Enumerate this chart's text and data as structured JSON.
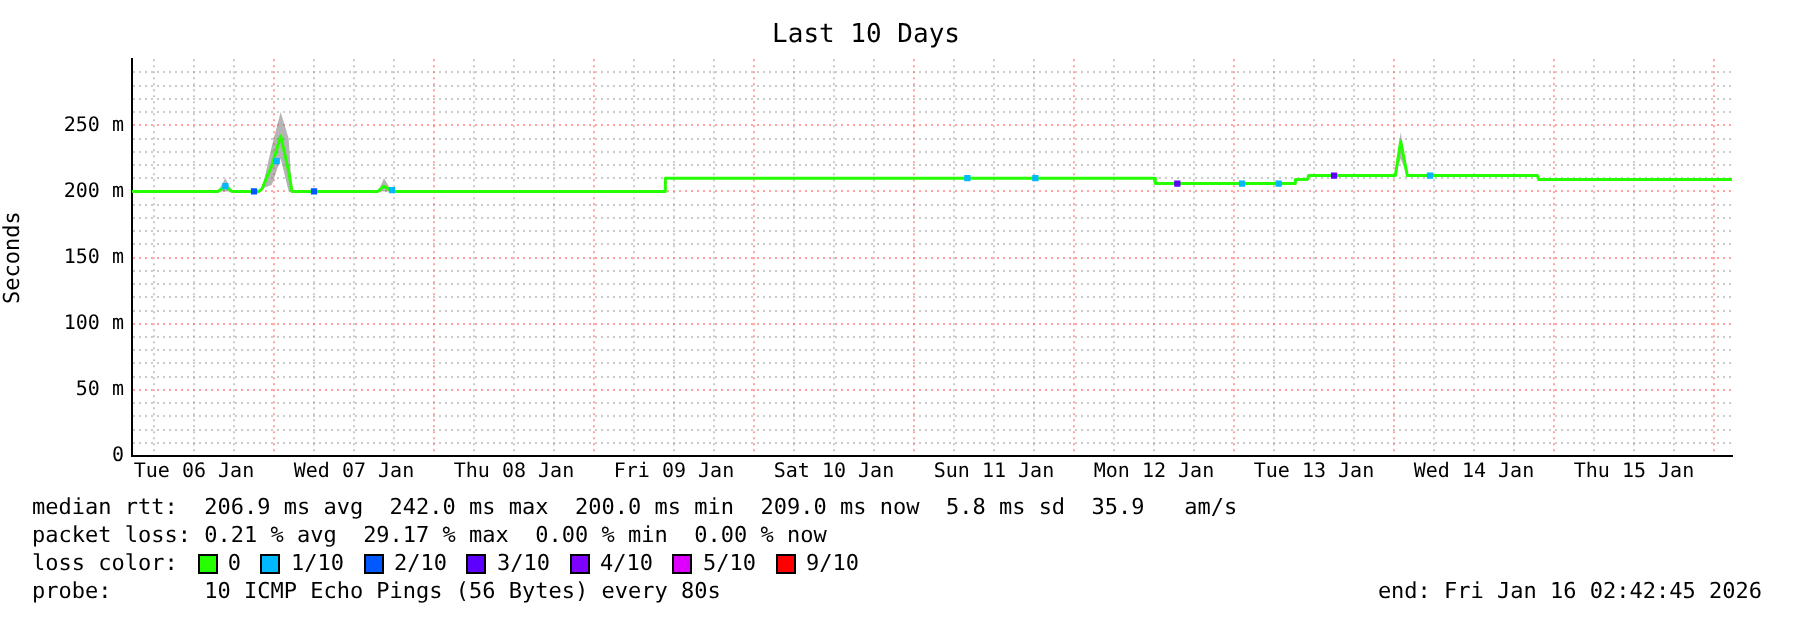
{
  "chart_data": {
    "type": "line",
    "title": "Last 10 Days",
    "ylabel": "Seconds",
    "legend_title": "loss color:",
    "legend": "bottom",
    "grid": true,
    "marker": "none",
    "xlim": [
      "2026-01-06T02:42",
      "2026-01-16T02:42"
    ],
    "xticks": [
      {
        "value": "2026-01-06T06:00",
        "label": null
      },
      {
        "value": "2026-01-06T12:00",
        "label": "Tue 06 Jan"
      },
      {
        "value": "2026-01-06T18:00",
        "label": null
      },
      {
        "value": "2026-01-07T00:00",
        "label": null
      },
      {
        "value": "2026-01-07T06:00",
        "label": null
      },
      {
        "value": "2026-01-07T12:00",
        "label": "Wed 07 Jan"
      },
      {
        "value": "2026-01-07T18:00",
        "label": null
      },
      {
        "value": "2026-01-08T00:00",
        "label": null
      },
      {
        "value": "2026-01-08T06:00",
        "label": null
      },
      {
        "value": "2026-01-08T12:00",
        "label": "Thu 08 Jan"
      },
      {
        "value": "2026-01-08T18:00",
        "label": null
      },
      {
        "value": "2026-01-09T00:00",
        "label": null
      },
      {
        "value": "2026-01-09T06:00",
        "label": null
      },
      {
        "value": "2026-01-09T12:00",
        "label": "Fri 09 Jan"
      },
      {
        "value": "2026-01-09T18:00",
        "label": null
      },
      {
        "value": "2026-01-10T00:00",
        "label": null
      },
      {
        "value": "2026-01-10T06:00",
        "label": null
      },
      {
        "value": "2026-01-10T12:00",
        "label": "Sat 10 Jan"
      },
      {
        "value": "2026-01-10T18:00",
        "label": null
      },
      {
        "value": "2026-01-11T00:00",
        "label": null
      },
      {
        "value": "2026-01-11T06:00",
        "label": null
      },
      {
        "value": "2026-01-11T12:00",
        "label": "Sun 11 Jan"
      },
      {
        "value": "2026-01-11T18:00",
        "label": null
      },
      {
        "value": "2026-01-12T00:00",
        "label": null
      },
      {
        "value": "2026-01-12T06:00",
        "label": null
      },
      {
        "value": "2026-01-12T12:00",
        "label": "Mon 12 Jan"
      },
      {
        "value": "2026-01-12T18:00",
        "label": null
      },
      {
        "value": "2026-01-13T00:00",
        "label": null
      },
      {
        "value": "2026-01-13T06:00",
        "label": null
      },
      {
        "value": "2026-01-13T12:00",
        "label": "Tue 13 Jan"
      },
      {
        "value": "2026-01-13T18:00",
        "label": null
      },
      {
        "value": "2026-01-14T00:00",
        "label": null
      },
      {
        "value": "2026-01-14T06:00",
        "label": null
      },
      {
        "value": "2026-01-14T12:00",
        "label": "Wed 14 Jan"
      },
      {
        "value": "2026-01-14T18:00",
        "label": null
      },
      {
        "value": "2026-01-15T00:00",
        "label": null
      },
      {
        "value": "2026-01-15T06:00",
        "label": null
      },
      {
        "value": "2026-01-15T12:00",
        "label": "Thu 15 Jan"
      },
      {
        "value": "2026-01-15T18:00",
        "label": null
      },
      {
        "value": "2026-01-16T00:00",
        "label": null
      }
    ],
    "ylim": [
      0,
      300
    ],
    "yticks": [
      {
        "value": 0,
        "label": "0"
      },
      {
        "value": 10,
        "label": null
      },
      {
        "value": 20,
        "label": null
      },
      {
        "value": 30,
        "label": null
      },
      {
        "value": 40,
        "label": null
      },
      {
        "value": 50,
        "label": "50 m"
      },
      {
        "value": 60,
        "label": null
      },
      {
        "value": 70,
        "label": null
      },
      {
        "value": 80,
        "label": null
      },
      {
        "value": 90,
        "label": null
      },
      {
        "value": 100,
        "label": "100 m"
      },
      {
        "value": 110,
        "label": null
      },
      {
        "value": 120,
        "label": null
      },
      {
        "value": 130,
        "label": null
      },
      {
        "value": 140,
        "label": null
      },
      {
        "value": 150,
        "label": "150 m"
      },
      {
        "value": 160,
        "label": null
      },
      {
        "value": 170,
        "label": null
      },
      {
        "value": 180,
        "label": null
      },
      {
        "value": 190,
        "label": null
      },
      {
        "value": 200,
        "label": "200 m"
      },
      {
        "value": 210,
        "label": null
      },
      {
        "value": 220,
        "label": null
      },
      {
        "value": 230,
        "label": null
      },
      {
        "value": 240,
        "label": null
      },
      {
        "value": 250,
        "label": "250 m"
      },
      {
        "value": 260,
        "label": null
      },
      {
        "value": 270,
        "label": null
      },
      {
        "value": 280,
        "label": null
      },
      {
        "value": 290,
        "label": null
      }
    ],
    "series": [
      {
        "name": "0",
        "color": "#26ff00",
        "x": [
          "2026-01-06T02:42",
          "2026-01-06T15:36",
          "2026-01-06T16:42",
          "2026-01-06T17:42",
          "2026-01-06T21:42",
          "2026-01-06T22:12",
          "2026-01-06T23:42",
          "2026-01-07T01:00",
          "2026-01-07T02:12",
          "2026-01-07T02:42",
          "2026-01-07T15:36",
          "2026-01-07T16:30",
          "2026-01-07T17:42",
          "2026-01-09T10:30",
          "2026-01-09T10:42",
          "2026-01-12T12:00",
          "2026-01-12T12:12",
          "2026-01-13T09:00",
          "2026-01-13T09:12",
          "2026-01-13T11:00",
          "2026-01-13T11:12",
          "2026-01-14T00:12",
          "2026-01-14T01:00",
          "2026-01-14T02:00",
          "2026-01-14T21:30",
          "2026-01-14T21:42",
          "2026-01-16T02:42"
        ],
        "values": [
          200,
          200,
          204,
          200,
          200,
          202,
          220,
          242,
          215,
          200,
          200,
          204,
          200,
          200,
          210,
          210,
          206,
          206,
          209,
          209,
          212,
          212,
          238,
          212,
          212,
          209,
          209
        ],
        "lower": [
          200,
          200,
          200,
          200,
          200,
          202,
          205,
          225,
          200,
          200,
          200,
          200,
          200,
          200,
          210,
          210,
          206,
          206,
          209,
          209,
          212,
          212,
          225,
          212,
          212,
          209,
          209
        ],
        "upper": [
          200,
          200,
          210,
          200,
          200,
          202,
          235,
          260,
          240,
          200,
          200,
          210,
          200,
          200,
          210,
          210,
          206,
          206,
          209,
          209,
          212,
          212,
          245,
          212,
          212,
          209,
          209
        ]
      },
      {
        "name": "1/10",
        "type": "scatter",
        "marker": "square",
        "color": "#00b8ff",
        "x": [
          "2026-01-06T16:42",
          "2026-01-07T00:24",
          "2026-01-07T17:42",
          "2026-01-11T08:00",
          "2026-01-11T18:12",
          "2026-01-13T01:12",
          "2026-01-13T06:42",
          "2026-01-14T05:24"
        ],
        "values": [
          204,
          223,
          201,
          210,
          210,
          206,
          206,
          212
        ]
      },
      {
        "name": "2/10",
        "type": "scatter",
        "marker": "square",
        "color": "#0059ff",
        "x": [
          "2026-01-06T21:00",
          "2026-01-07T06:00"
        ],
        "values": [
          200,
          200
        ]
      },
      {
        "name": "3/10",
        "type": "scatter",
        "marker": "square",
        "color": "#5e00ff",
        "x": [
          "2026-01-12T15:30",
          "2026-01-13T15:00"
        ],
        "values": [
          206,
          212
        ]
      },
      {
        "name": "4/10",
        "type": "scatter",
        "color": "#7e00ff"
      },
      {
        "name": "5/10",
        "type": "scatter",
        "color": "#dd00ff"
      },
      {
        "name": "9/10",
        "type": "scatter",
        "color": "#ff0000"
      }
    ],
    "annotations": [
      "median rtt:  206.9 ms avg  242.0 ms max  200.0 ms min  209.0 ms now  5.8 ms sd  35.9   am/s",
      "packet loss: 0.21 % avg  29.17 % max  0.00 % min  0.00 % now",
      "probe:       10 ICMP Echo Pings (56 Bytes) every 80s",
      "end: Fri Jan 16 02:42:45 2026"
    ]
  }
}
